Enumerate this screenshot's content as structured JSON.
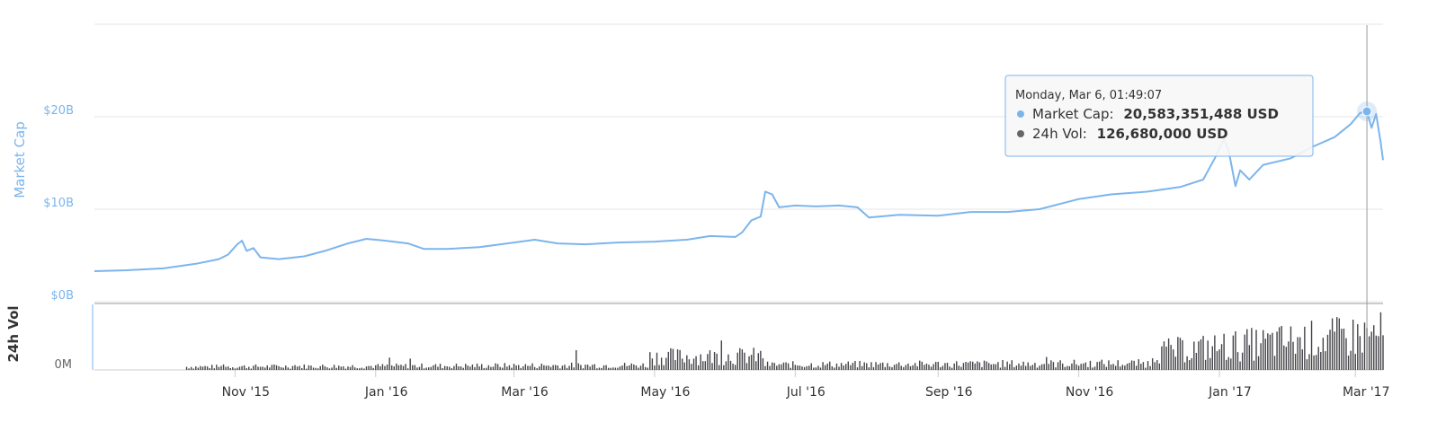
{
  "chart_data": {
    "type": "line",
    "panes": [
      "Market Cap",
      "24h Vol"
    ],
    "y_axis": {
      "label": "Market Cap",
      "ticks": [
        "$0B",
        "$10B",
        "$20B"
      ],
      "tick_values": [
        0,
        10,
        20
      ],
      "range_billions": [
        0,
        30
      ]
    },
    "vol_axis": {
      "label": "24h Vol",
      "ticks": [
        "0M"
      ]
    },
    "x_axis": {
      "tick_labels": [
        "Nov '15",
        "Jan '16",
        "Mar '16",
        "May '16",
        "Jul '16",
        "Sep '16",
        "Nov '16",
        "Jan '17",
        "Mar '17"
      ],
      "tick_dates": [
        "2015-11-01",
        "2016-01-01",
        "2016-03-01",
        "2016-05-01",
        "2016-07-01",
        "2016-09-01",
        "2016-11-01",
        "2017-01-01",
        "2017-03-01"
      ],
      "range": [
        "2015-09-01",
        "2017-03-13"
      ]
    },
    "series": [
      {
        "name": "Market Cap",
        "color": "#7cb5ec",
        "unit": "billions USD",
        "points": [
          [
            "2015-09-01",
            3.3
          ],
          [
            "2015-09-15",
            3.4
          ],
          [
            "2015-10-01",
            3.6
          ],
          [
            "2015-10-15",
            4.1
          ],
          [
            "2015-10-25",
            4.6
          ],
          [
            "2015-10-29",
            5.1
          ],
          [
            "2015-11-02",
            6.2
          ],
          [
            "2015-11-04",
            6.6
          ],
          [
            "2015-11-06",
            5.5
          ],
          [
            "2015-11-09",
            5.8
          ],
          [
            "2015-11-12",
            4.8
          ],
          [
            "2015-11-20",
            4.6
          ],
          [
            "2015-12-01",
            4.9
          ],
          [
            "2015-12-10",
            5.5
          ],
          [
            "2015-12-20",
            6.3
          ],
          [
            "2015-12-28",
            6.8
          ],
          [
            "2016-01-05",
            6.6
          ],
          [
            "2016-01-15",
            6.3
          ],
          [
            "2016-01-22",
            5.7
          ],
          [
            "2016-02-01",
            5.7
          ],
          [
            "2016-02-15",
            5.9
          ],
          [
            "2016-03-01",
            6.4
          ],
          [
            "2016-03-10",
            6.7
          ],
          [
            "2016-03-20",
            6.3
          ],
          [
            "2016-04-01",
            6.2
          ],
          [
            "2016-04-15",
            6.4
          ],
          [
            "2016-05-01",
            6.5
          ],
          [
            "2016-05-15",
            6.7
          ],
          [
            "2016-05-25",
            7.1
          ],
          [
            "2016-06-05",
            7.0
          ],
          [
            "2016-06-08",
            7.5
          ],
          [
            "2016-06-12",
            8.8
          ],
          [
            "2016-06-16",
            9.2
          ],
          [
            "2016-06-18",
            11.9
          ],
          [
            "2016-06-21",
            11.6
          ],
          [
            "2016-06-24",
            10.2
          ],
          [
            "2016-07-01",
            10.4
          ],
          [
            "2016-07-10",
            10.3
          ],
          [
            "2016-07-20",
            10.4
          ],
          [
            "2016-07-28",
            10.2
          ],
          [
            "2016-08-02",
            9.1
          ],
          [
            "2016-08-15",
            9.4
          ],
          [
            "2016-09-01",
            9.3
          ],
          [
            "2016-09-15",
            9.7
          ],
          [
            "2016-10-01",
            9.7
          ],
          [
            "2016-10-15",
            10.0
          ],
          [
            "2016-11-01",
            11.1
          ],
          [
            "2016-11-15",
            11.6
          ],
          [
            "2016-12-01",
            11.9
          ],
          [
            "2016-12-15",
            12.4
          ],
          [
            "2016-12-25",
            13.2
          ],
          [
            "2016-12-30",
            15.5
          ],
          [
            "2017-01-03",
            17.6
          ],
          [
            "2017-01-05",
            16.4
          ],
          [
            "2017-01-08",
            12.5
          ],
          [
            "2017-01-10",
            14.2
          ],
          [
            "2017-01-14",
            13.2
          ],
          [
            "2017-01-20",
            14.8
          ],
          [
            "2017-02-01",
            15.5
          ],
          [
            "2017-02-10",
            16.7
          ],
          [
            "2017-02-20",
            17.8
          ],
          [
            "2017-02-27",
            19.2
          ],
          [
            "2017-03-03",
            20.4
          ],
          [
            "2017-03-06",
            20.58
          ],
          [
            "2017-03-08",
            18.8
          ],
          [
            "2017-03-10",
            20.3
          ],
          [
            "2017-03-12",
            17.2
          ],
          [
            "2017-03-13",
            15.3
          ]
        ]
      },
      {
        "name": "24h Vol",
        "color": "#434348",
        "unit": "relative"
      }
    ],
    "crosshair_date": "2017-03-06",
    "tooltip": {
      "date": "Monday, Mar 6, 01:49:07",
      "market_cap_label": "Market Cap:",
      "market_cap_value": "20,583,351,488 USD",
      "vol_label": "24h Vol:",
      "vol_value": "126,680,000 USD"
    },
    "grid": true,
    "legend": "none"
  }
}
